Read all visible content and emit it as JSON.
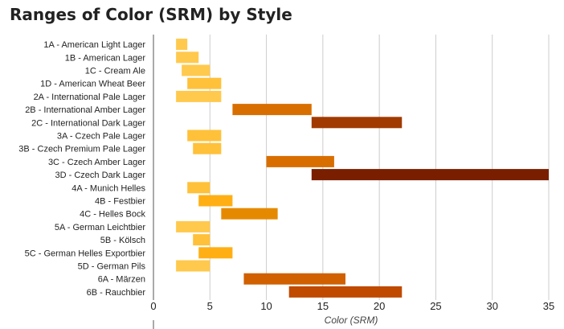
{
  "chart_data": {
    "type": "bar",
    "orientation": "horizontal",
    "range_bars": true,
    "title": "Ranges of Color (SRM) by Style",
    "xlabel": "Color (SRM)",
    "ylabel": "",
    "xlim": [
      0,
      35
    ],
    "x_ticks": [
      "0",
      "5",
      "10",
      "15",
      "20",
      "25",
      "30",
      "35"
    ],
    "grid": true,
    "legend": "none",
    "categories": [
      "1A - American Light Lager",
      "1B - American Lager",
      "1C - Cream Ale",
      "1D - American Wheat Beer",
      "2A - International Pale Lager",
      "2B - International Amber Lager",
      "2C - International Dark Lager",
      "3A - Czech Pale Lager",
      "3B - Czech Premium Pale Lager",
      "3C - Czech Amber Lager",
      "3D - Czech Dark Lager",
      "4A - Munich Helles",
      "4B - Festbier",
      "4C - Helles Bock",
      "5A - German Leichtbier",
      "5B - Kölsch",
      "5C - German Helles Exportbier",
      "5D - German Pils",
      "6A - Märzen",
      "6B - Rauchbier"
    ],
    "ranges": [
      [
        2,
        3
      ],
      [
        2,
        4
      ],
      [
        2.5,
        5
      ],
      [
        3,
        6
      ],
      [
        2,
        6
      ],
      [
        7,
        14
      ],
      [
        14,
        22
      ],
      [
        3,
        6
      ],
      [
        3.5,
        6
      ],
      [
        10,
        16
      ],
      [
        14,
        35
      ],
      [
        3,
        5
      ],
      [
        4,
        7
      ],
      [
        6,
        11
      ],
      [
        2,
        5
      ],
      [
        3.5,
        5
      ],
      [
        4,
        7
      ],
      [
        2,
        5
      ],
      [
        8,
        17
      ],
      [
        12,
        22
      ]
    ],
    "colors": [
      "#FFC94D",
      "#FFC94D",
      "#FFC94D",
      "#FFC13A",
      "#FFC94D",
      "#D96E00",
      "#A13A00",
      "#FFC13A",
      "#FFC13A",
      "#D96E00",
      "#7A1E00",
      "#FFC13A",
      "#FFAF14",
      "#E58A00",
      "#FFC94D",
      "#FFC13A",
      "#FFAF14",
      "#FFC94D",
      "#D06000",
      "#BF4A00"
    ],
    "grid_color": "#cccccc",
    "label_color": "#222222",
    "axis_title_color": "#444444"
  }
}
